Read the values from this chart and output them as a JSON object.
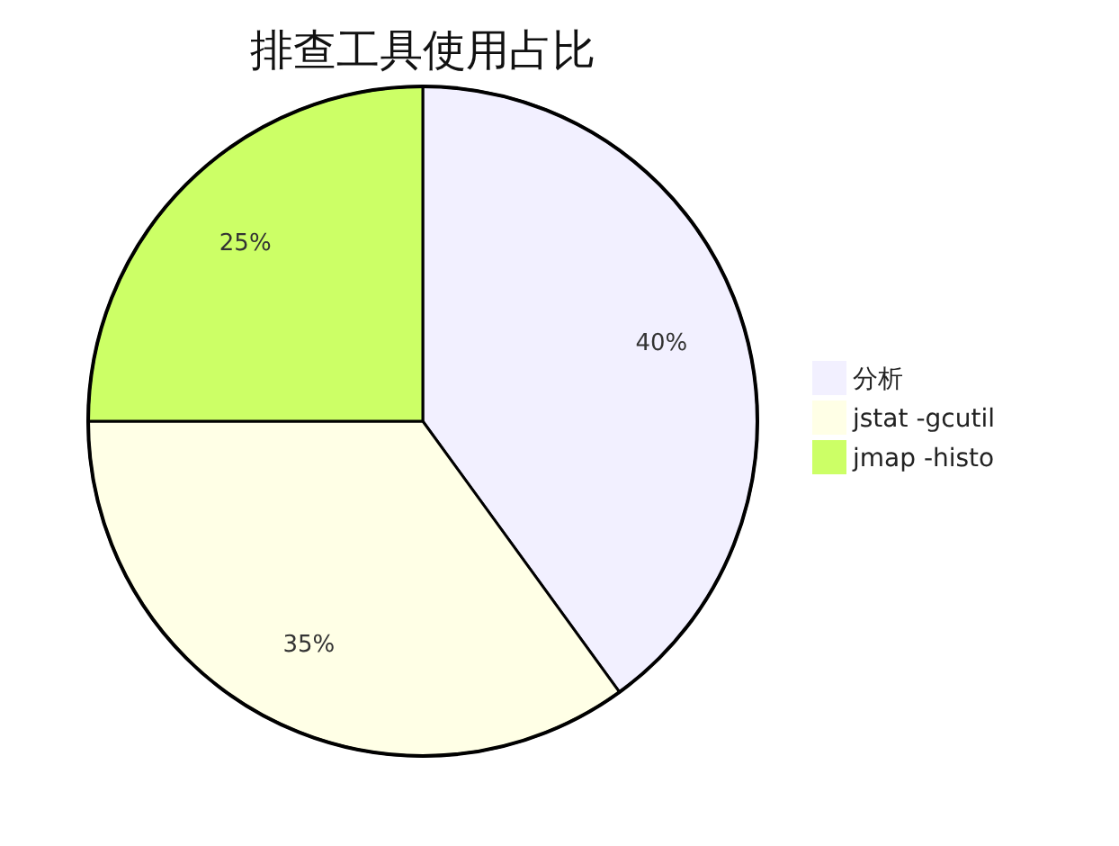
{
  "chart_data": {
    "type": "pie",
    "title": "排查工具使用占比",
    "categories": [
      "分析",
      "jstat -gcutil",
      "jmap -histo"
    ],
    "values": [
      40,
      35,
      25
    ],
    "colors": [
      "#f2f0ff",
      "#ffffe6",
      "#ccff66"
    ],
    "value_labels": [
      "40%",
      "35%",
      "25%"
    ],
    "legend": "right"
  }
}
